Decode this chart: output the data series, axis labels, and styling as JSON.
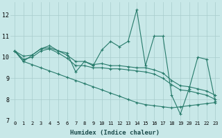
{
  "xlabel": "Humidex (Indice chaleur)",
  "background_color": "#c8e8e8",
  "grid_color": "#a8cccc",
  "line_color": "#267a6a",
  "xlim": [
    -0.5,
    23.5
  ],
  "ylim": [
    7,
    12.6
  ],
  "yticks": [
    7,
    8,
    9,
    10,
    11,
    12
  ],
  "xticks": [
    0,
    1,
    2,
    3,
    4,
    5,
    6,
    7,
    8,
    9,
    10,
    11,
    12,
    13,
    14,
    15,
    16,
    17,
    18,
    19,
    20,
    21,
    22,
    23
  ],
  "series": [
    [
      10.3,
      9.8,
      10.1,
      10.4,
      10.55,
      10.3,
      10.2,
      9.3,
      9.8,
      9.6,
      10.35,
      10.75,
      10.5,
      10.75,
      12.25,
      9.6,
      11.0,
      11.0,
      8.2,
      7.3,
      8.5,
      10.0,
      9.9,
      7.9
    ],
    [
      10.3,
      10.05,
      10.1,
      10.4,
      10.45,
      10.3,
      10.1,
      9.8,
      9.8,
      9.65,
      9.7,
      9.6,
      9.6,
      9.55,
      9.5,
      9.5,
      9.4,
      9.25,
      8.9,
      8.65,
      8.6,
      8.5,
      8.4,
      8.2
    ],
    [
      10.3,
      9.9,
      10.0,
      10.3,
      10.4,
      10.2,
      9.95,
      9.6,
      9.6,
      9.5,
      9.5,
      9.45,
      9.45,
      9.4,
      9.35,
      9.3,
      9.2,
      9.0,
      8.7,
      8.45,
      8.4,
      8.3,
      8.2,
      8.0
    ],
    [
      10.3,
      9.8,
      9.65,
      9.5,
      9.35,
      9.2,
      9.05,
      8.9,
      8.75,
      8.6,
      8.45,
      8.3,
      8.15,
      8.0,
      7.85,
      7.75,
      7.7,
      7.65,
      7.6,
      7.65,
      7.7,
      7.75,
      7.8,
      7.85
    ]
  ]
}
